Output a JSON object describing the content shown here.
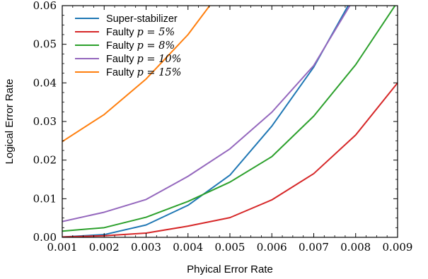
{
  "chart_data": {
    "type": "line",
    "xlabel": "Phyical Error Rate",
    "ylabel": "Logical Error Rate",
    "xlim": [
      0.001,
      0.009
    ],
    "ylim": [
      0.0,
      0.06
    ],
    "x_ticks": [
      "0.001",
      "0.002",
      "0.003",
      "0.004",
      "0.005",
      "0.006",
      "0.007",
      "0.008",
      "0.009"
    ],
    "y_ticks": [
      "0.00",
      "0.01",
      "0.02",
      "0.03",
      "0.04",
      "0.05",
      "0.06"
    ],
    "legend_position": "top-left",
    "grid": false,
    "series": [
      {
        "name": "Super-stabilizer",
        "label_text": "Super-stabilizer",
        "label_math": "",
        "color": "#1f77b4",
        "x": [
          0.001,
          0.002,
          0.003,
          0.004,
          0.005,
          0.006,
          0.007,
          0.008
        ],
        "y": [
          0.0001,
          0.0007,
          0.0032,
          0.0083,
          0.0161,
          0.0288,
          0.0441,
          0.0635
        ]
      },
      {
        "name": "Faulty p = 5%",
        "label_text": "Faulty ",
        "label_math": "p = 5%",
        "color": "#d62728",
        "x": [
          0.001,
          0.002,
          0.003,
          0.004,
          0.005,
          0.006,
          0.007,
          0.008,
          0.009
        ],
        "y": [
          0.0001,
          0.0004,
          0.0011,
          0.0029,
          0.0051,
          0.0097,
          0.0165,
          0.0265,
          0.04
        ]
      },
      {
        "name": "Faulty p = 8%",
        "label_text": "Faulty ",
        "label_math": "p = 8%",
        "color": "#2ca02c",
        "x": [
          0.001,
          0.002,
          0.003,
          0.004,
          0.005,
          0.006,
          0.007,
          0.008,
          0.009
        ],
        "y": [
          0.0016,
          0.0025,
          0.0052,
          0.0093,
          0.0143,
          0.0209,
          0.0314,
          0.0447,
          0.061
        ]
      },
      {
        "name": "Faulty p = 10%",
        "label_text": "Faulty ",
        "label_math": "p = 10%",
        "color": "#9467bd",
        "x": [
          0.001,
          0.002,
          0.003,
          0.004,
          0.005,
          0.006,
          0.007,
          0.008
        ],
        "y": [
          0.0041,
          0.0065,
          0.0098,
          0.0158,
          0.0229,
          0.0324,
          0.0445,
          0.0625
        ]
      },
      {
        "name": "Faulty p = 15%",
        "label_text": "Faulty ",
        "label_math": "p = 15%",
        "color": "#ff7f0e",
        "x": [
          0.001,
          0.002,
          0.003,
          0.004,
          0.005
        ],
        "y": [
          0.0248,
          0.0318,
          0.041,
          0.0525,
          0.067
        ]
      }
    ]
  }
}
